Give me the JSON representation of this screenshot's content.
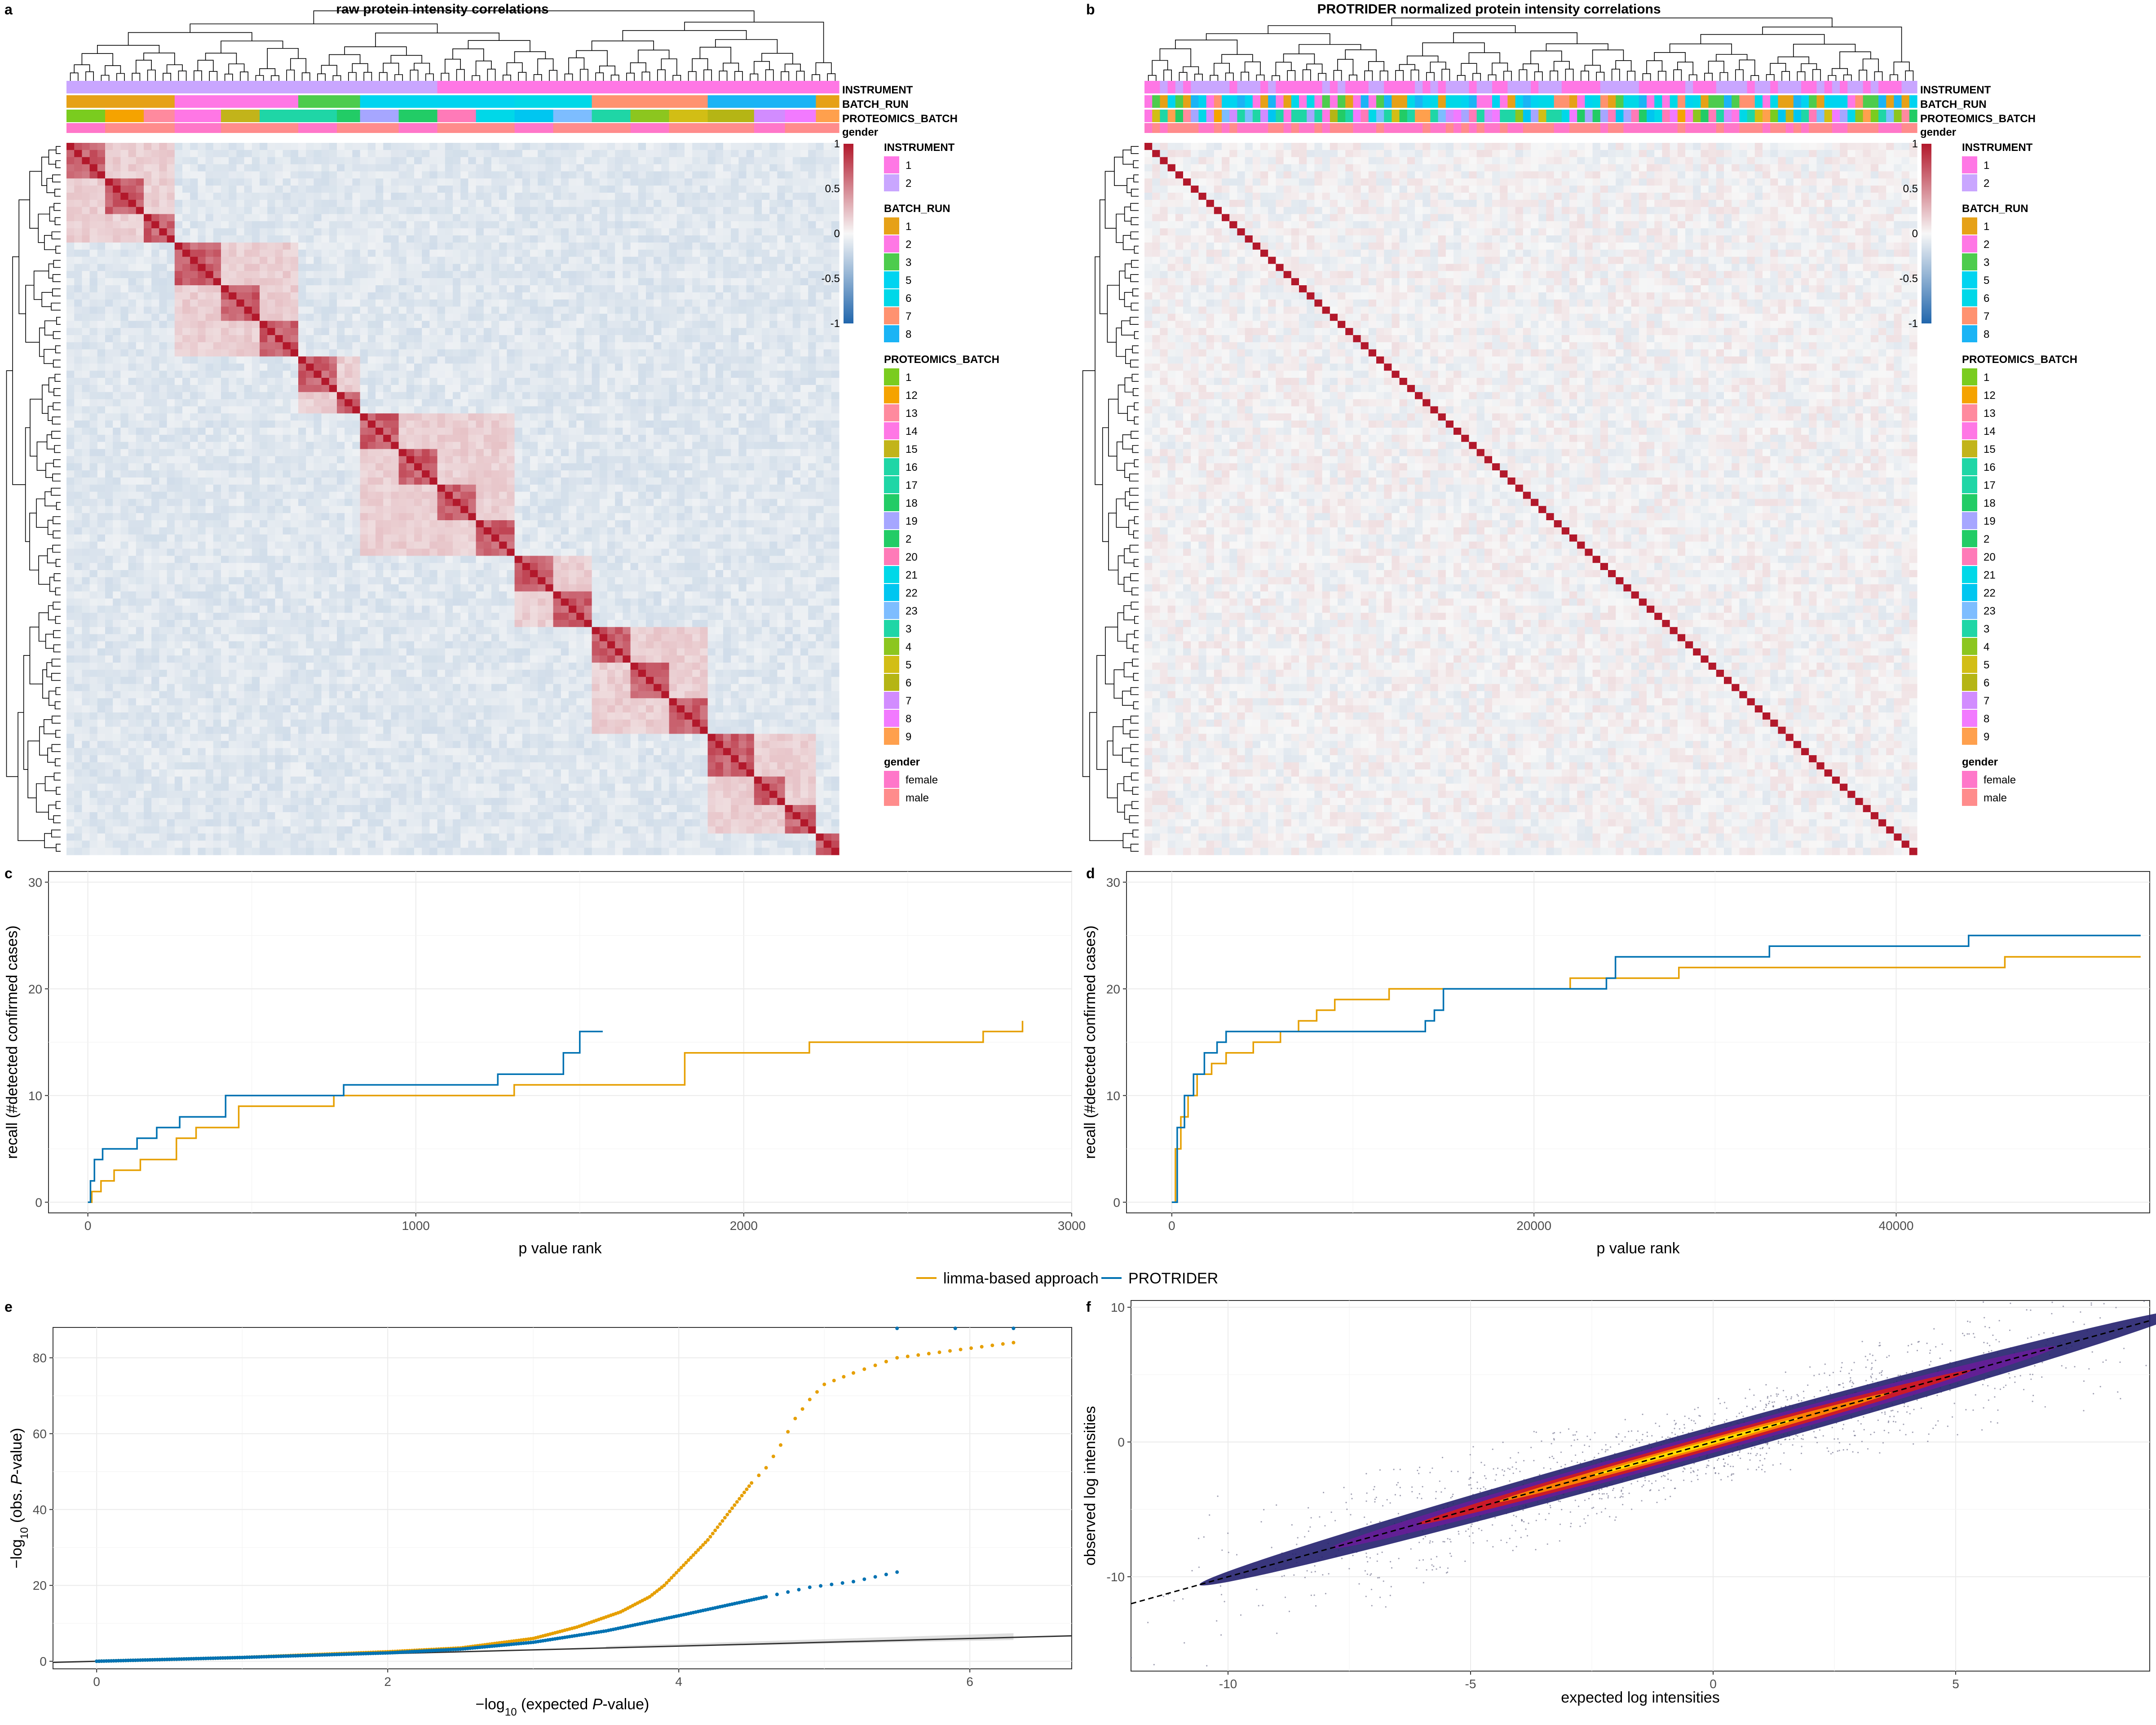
{
  "panels": {
    "a": {
      "letter": "a",
      "title": "raw protein intensity correlations"
    },
    "b": {
      "letter": "b",
      "title": "PROTRIDER normalized protein intensity correlations"
    },
    "c": {
      "letter": "c"
    },
    "d": {
      "letter": "d"
    },
    "e": {
      "letter": "e"
    },
    "f": {
      "letter": "f"
    }
  },
  "annotation_rows": [
    "INSTRUMENT",
    "BATCH_RUN",
    "PROTEOMICS_BATCH",
    "gender"
  ],
  "colors": {
    "limma": "#E69F00",
    "protrider": "#0072B2",
    "heat_high": "#B2182B",
    "heat_mid": "#F7F7F7",
    "heat_low": "#2166AC"
  },
  "heat_legend": {
    "ticks": [
      "1",
      "0.5",
      "0",
      "-0.5",
      "-1"
    ]
  },
  "legend_groups": [
    {
      "title": "INSTRUMENT",
      "items": [
        {
          "label": "1",
          "color": "#FF77E5"
        },
        {
          "label": "2",
          "color": "#C9A6FF"
        }
      ]
    },
    {
      "title": "BATCH_RUN",
      "items": [
        {
          "label": "1",
          "color": "#E6A117"
        },
        {
          "label": "2",
          "color": "#FF77E5"
        },
        {
          "label": "3",
          "color": "#4DCC4D"
        },
        {
          "label": "5",
          "color": "#00D4F0"
        },
        {
          "label": "6",
          "color": "#00D8E8"
        },
        {
          "label": "7",
          "color": "#FF9270"
        },
        {
          "label": "8",
          "color": "#1AB4F5"
        }
      ]
    },
    {
      "title": "PROTEOMICS_BATCH",
      "items": [
        {
          "label": "1",
          "color": "#7ACC1F"
        },
        {
          "label": "12",
          "color": "#F5A300"
        },
        {
          "label": "13",
          "color": "#FF8A9E"
        },
        {
          "label": "14",
          "color": "#FF77E5"
        },
        {
          "label": "15",
          "color": "#C2B41A"
        },
        {
          "label": "16",
          "color": "#1FD6A6"
        },
        {
          "label": "17",
          "color": "#1FD6A6"
        },
        {
          "label": "18",
          "color": "#22CC66"
        },
        {
          "label": "19",
          "color": "#A6A6FF"
        },
        {
          "label": "2",
          "color": "#22CC66"
        },
        {
          "label": "20",
          "color": "#FF7AB8"
        },
        {
          "label": "21",
          "color": "#00D8E8"
        },
        {
          "label": "22",
          "color": "#00C6F0"
        },
        {
          "label": "23",
          "color": "#7DBDFF"
        },
        {
          "label": "3",
          "color": "#1FD6A6"
        },
        {
          "label": "4",
          "color": "#8CC61F"
        },
        {
          "label": "5",
          "color": "#D2BE15"
        },
        {
          "label": "6",
          "color": "#B5B515"
        },
        {
          "label": "7",
          "color": "#D28CFF"
        },
        {
          "label": "8",
          "color": "#F27AFF"
        },
        {
          "label": "9",
          "color": "#FFA04D"
        }
      ]
    },
    {
      "title": "gender",
      "items": [
        {
          "label": "female",
          "color": "#FF77C9"
        },
        {
          "label": "male",
          "color": "#FF8C8C"
        }
      ]
    }
  ],
  "legend": {
    "limma": "limma-based approach",
    "protrider": "PROTRIDER"
  },
  "chart_data": [
    {
      "panel": "c",
      "type": "line",
      "xlabel": "p value rank",
      "ylabel": "recall (#detected confirmed cases)",
      "xlim": [
        -120,
        3000
      ],
      "ylim": [
        -1,
        31
      ],
      "xticks": [
        "0",
        "1000",
        "2000",
        "3000"
      ],
      "yticks": [
        "0",
        "10",
        "20",
        "30"
      ],
      "series": [
        {
          "name": "limma-based approach",
          "key": "limma",
          "x": [
            0,
            12,
            40,
            80,
            160,
            270,
            330,
            460,
            750,
            1300,
            1820,
            2200,
            2730,
            2850
          ],
          "y": [
            0,
            1,
            2,
            3,
            4,
            6,
            7,
            9,
            10,
            11,
            14,
            15,
            16,
            17
          ]
        },
        {
          "name": "PROTRIDER",
          "key": "protrider",
          "x": [
            0,
            8,
            20,
            45,
            150,
            210,
            280,
            420,
            780,
            1250,
            1450,
            1500,
            1570
          ],
          "y": [
            0,
            2,
            4,
            5,
            6,
            7,
            8,
            10,
            11,
            12,
            14,
            16,
            16
          ]
        }
      ]
    },
    {
      "panel": "d",
      "type": "line",
      "xlabel": "p value rank",
      "ylabel": "recall (#detected confirmed cases)",
      "xlim": [
        -2500,
        54000
      ],
      "ylim": [
        -1,
        31
      ],
      "xticks": [
        "0",
        "20000",
        "40000"
      ],
      "yticks": [
        "0",
        "10",
        "20",
        "30"
      ],
      "series": [
        {
          "name": "limma-based approach",
          "key": "limma",
          "x": [
            0,
            200,
            500,
            900,
            1400,
            2200,
            3000,
            4500,
            6000,
            7000,
            8000,
            9000,
            12000,
            19000,
            22000,
            28000,
            34000,
            41000,
            46000,
            53500
          ],
          "y": [
            0,
            5,
            8,
            10,
            12,
            13,
            14,
            15,
            16,
            17,
            18,
            19,
            20,
            20,
            21,
            22,
            22,
            22,
            23,
            23
          ]
        },
        {
          "name": "PROTRIDER",
          "key": "protrider",
          "x": [
            0,
            300,
            700,
            1200,
            1800,
            2500,
            3000,
            7000,
            13000,
            14000,
            14500,
            15000,
            19500,
            24000,
            24500,
            33000,
            40000,
            44000,
            53500
          ],
          "y": [
            0,
            7,
            10,
            12,
            14,
            15,
            16,
            16,
            16,
            17,
            18,
            20,
            20,
            21,
            23,
            24,
            24,
            25,
            25
          ]
        }
      ]
    },
    {
      "panel": "e",
      "type": "scatter",
      "xlabel_prefix": "−log",
      "xlabel_sub": "10",
      "xlabel_mid": " (expected ",
      "xlabel_italic": "P",
      "xlabel_suffix": "-value)",
      "ylabel_prefix": "−log",
      "ylabel_sub": "10",
      "ylabel_mid": " (obs. ",
      "ylabel_italic": "P",
      "ylabel_suffix": "-value)",
      "xlim": [
        -0.3,
        6.7
      ],
      "ylim": [
        -2,
        88
      ],
      "xticks": [
        "0",
        "2",
        "4",
        "6"
      ],
      "yticks": [
        "0",
        "20",
        "40",
        "60",
        "80"
      ],
      "reference_line": {
        "x": [
          -0.3,
          6.7
        ],
        "y": [
          -0.3,
          6.7
        ]
      },
      "series": [
        {
          "name": "limma-based approach",
          "key": "limma",
          "x": [
            0,
            1,
            2,
            2.5,
            3,
            3.3,
            3.6,
            3.8,
            3.9,
            4.0,
            4.1,
            4.2,
            4.3,
            4.4,
            4.5,
            4.6,
            4.7,
            4.8,
            4.9,
            5.0,
            5.2,
            5.5,
            6.3
          ],
          "y": [
            0,
            1,
            2.5,
            3.5,
            6,
            9,
            13,
            17,
            20,
            24,
            28,
            32,
            37,
            42,
            47,
            51,
            57,
            64,
            69,
            73,
            76,
            80,
            84
          ]
        },
        {
          "name": "PROTRIDER",
          "key": "protrider",
          "x": [
            0,
            1,
            2,
            2.5,
            3,
            3.5,
            4,
            4.3,
            4.6,
            4.9,
            5.2,
            5.5
          ],
          "y": [
            0,
            1,
            2.2,
            3.2,
            5,
            8,
            12,
            14.5,
            17,
            19.5,
            21,
            23.5
          ]
        }
      ]
    },
    {
      "panel": "f",
      "type": "scatter",
      "xlabel": "expected log intensities",
      "ylabel": "observed log intensities",
      "xlim": [
        -12,
        9
      ],
      "ylim": [
        -17,
        10.5
      ],
      "xticks": [
        "-10",
        "-5",
        "0",
        "5"
      ],
      "yticks": [
        "-10",
        "0",
        "10"
      ],
      "identity_line": {
        "x": [
          -12,
          9
        ],
        "y": [
          -12,
          9
        ]
      }
    }
  ]
}
